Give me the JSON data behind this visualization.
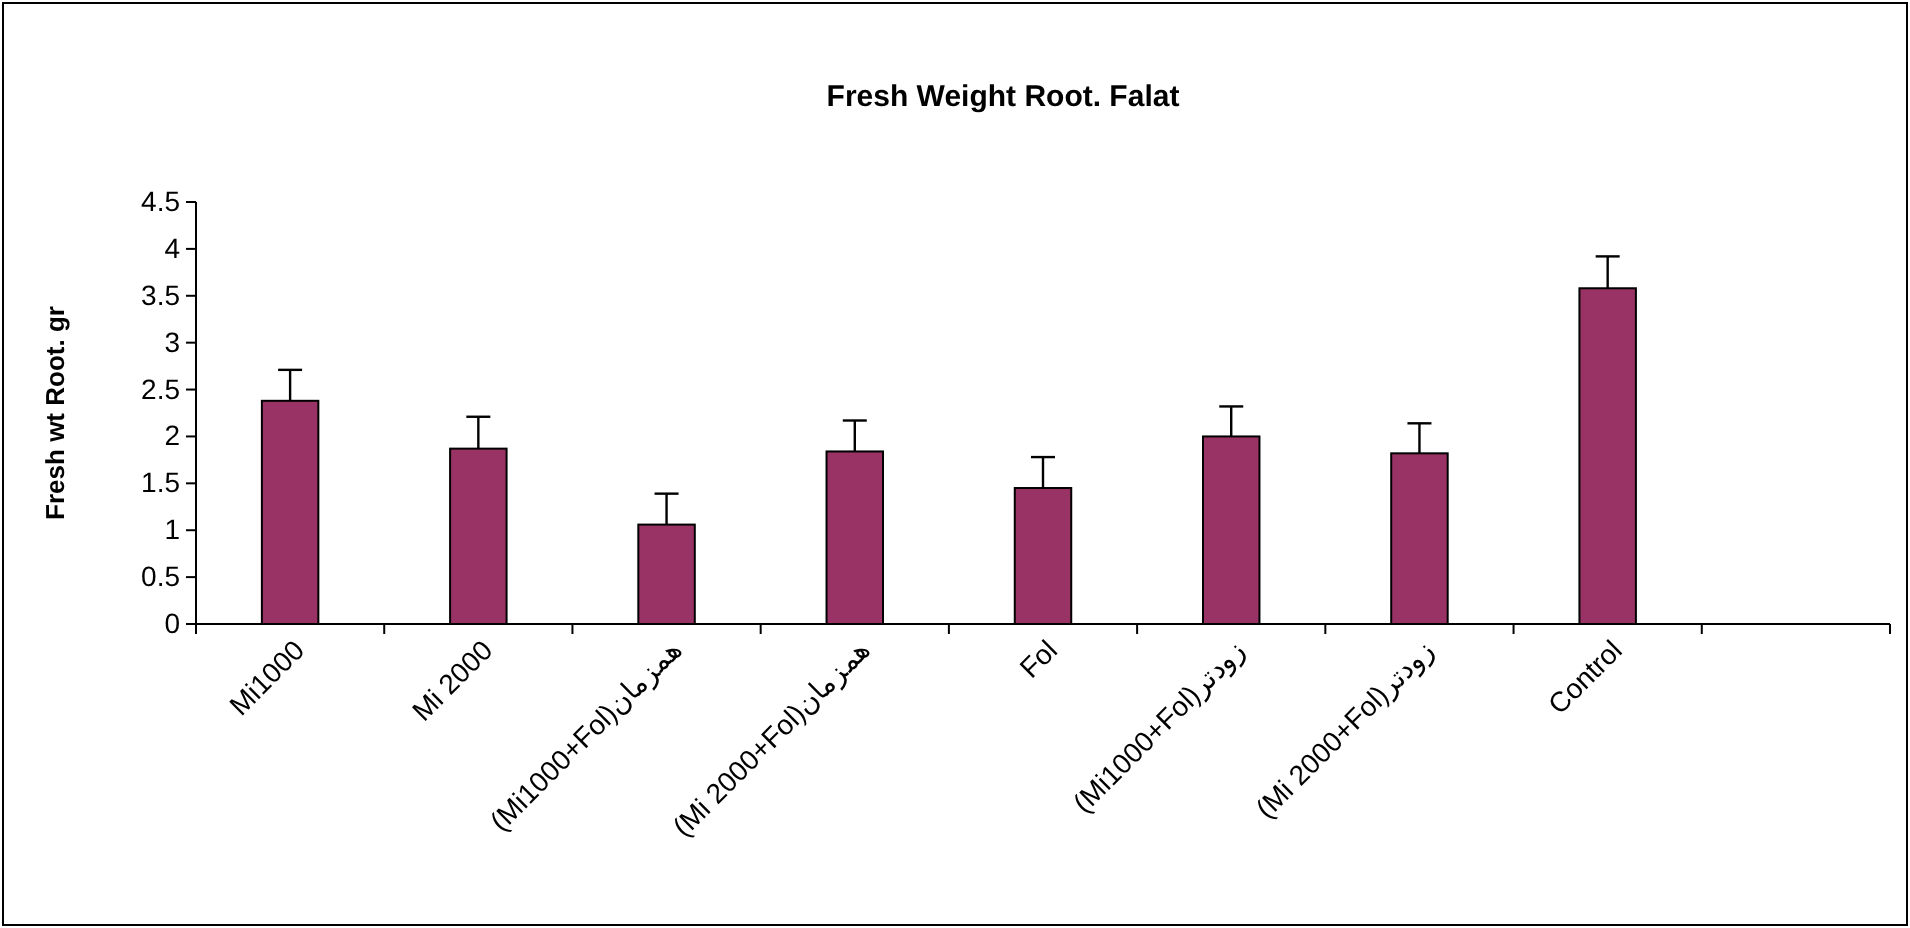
{
  "chart_data": {
    "type": "bar",
    "title": "Fresh Weight Root. Falat",
    "ylabel": "Fresh wt Root. gr",
    "categories": [
      "Mi1000",
      "Mi 2000",
      "(Mi1000+Fol)همزمان",
      "(Mi 2000+Fol)همزمان",
      "Fol",
      "(Mi1000+Fol)زودتر",
      "(Mi 2000+Fol)زودتر",
      "Control",
      null
    ],
    "values": [
      2.38,
      1.87,
      1.06,
      1.84,
      1.45,
      2.0,
      1.82,
      3.58,
      null
    ],
    "errors": [
      [
        2.38,
        2.71
      ],
      [
        1.87,
        2.21
      ],
      [
        1.06,
        1.39
      ],
      [
        1.84,
        2.17
      ],
      [
        1.45,
        1.78
      ],
      [
        2.0,
        2.32
      ],
      [
        1.82,
        2.14
      ],
      [
        3.58,
        3.92
      ],
      null
    ],
    "color": "#993366",
    "ylim": [
      0,
      4.5
    ],
    "yticks": [
      0,
      0.5,
      1,
      1.5,
      2,
      2.5,
      3,
      3.5,
      4,
      4.5
    ],
    "grid": false
  }
}
